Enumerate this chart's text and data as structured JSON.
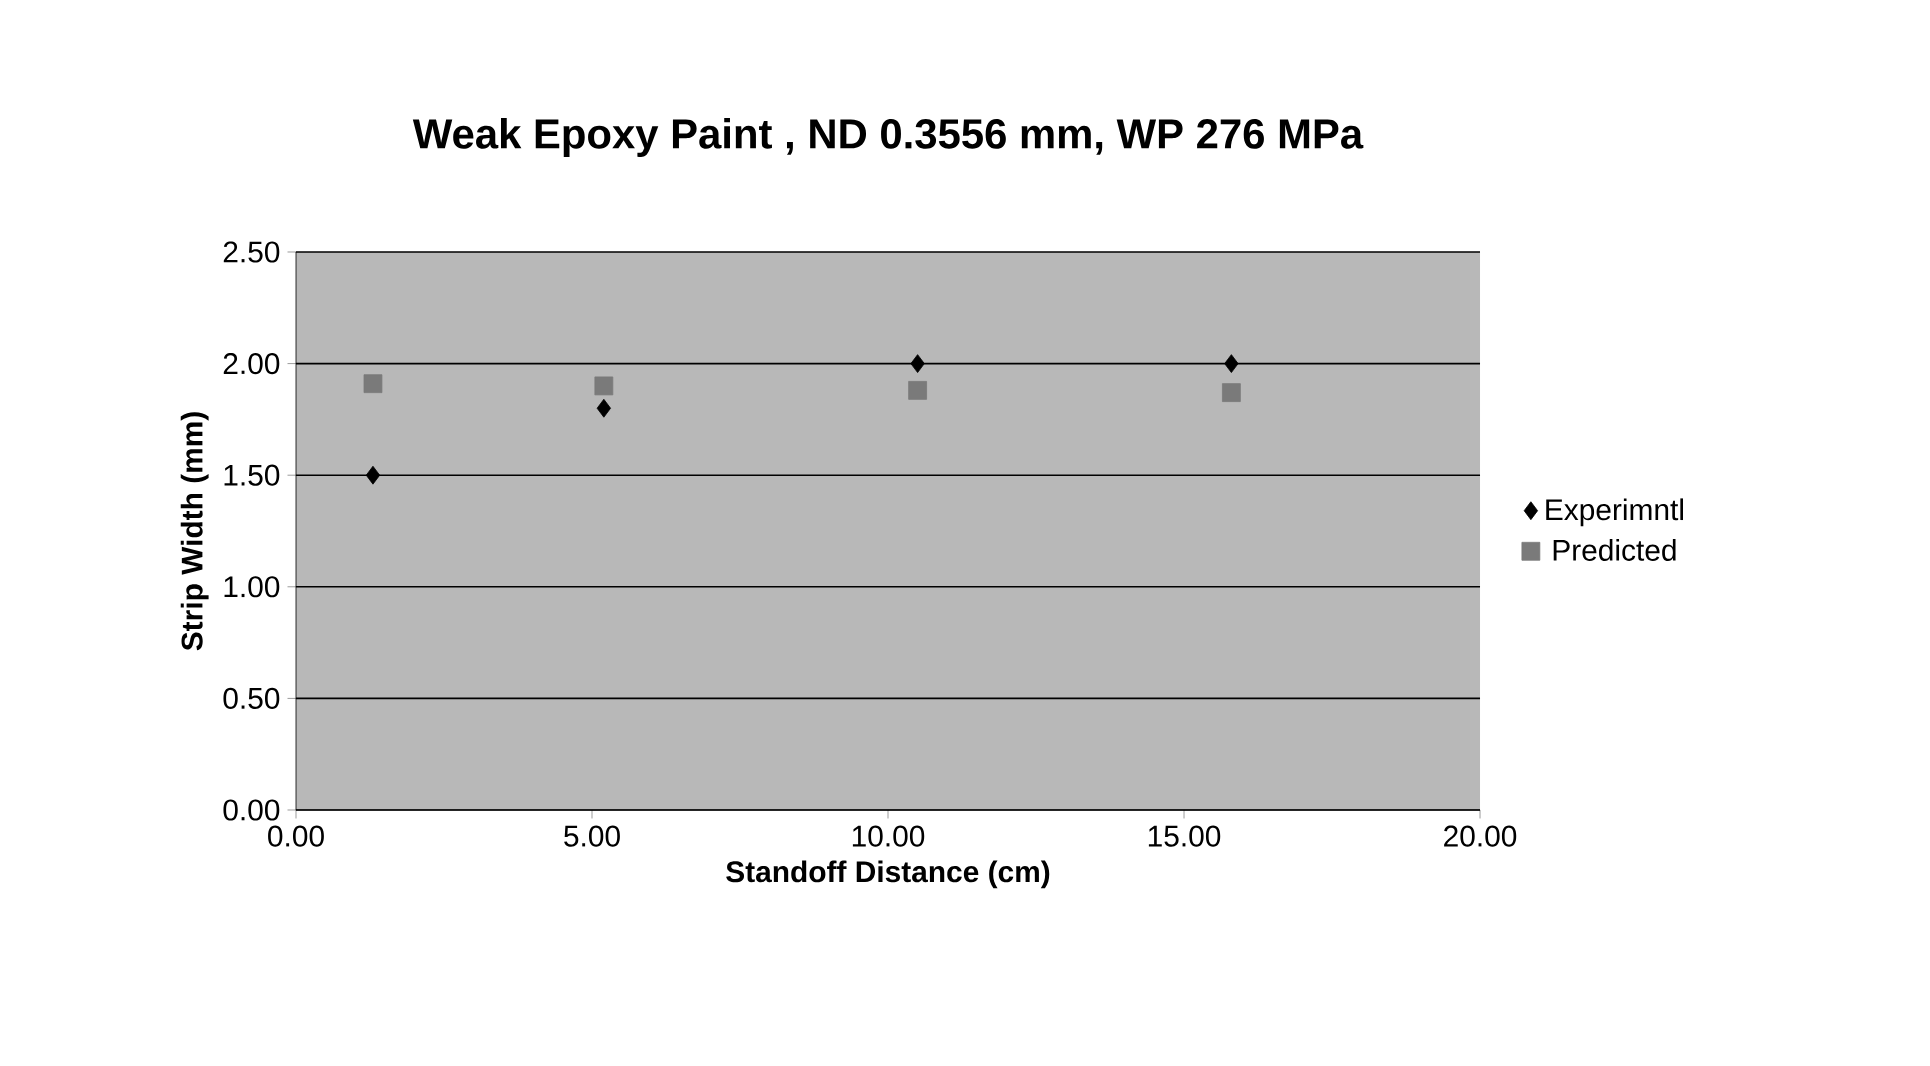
{
  "chart_data": {
    "type": "scatter",
    "title": "Weak Epoxy Paint , ND 0.3556 mm, WP 276 MPa",
    "xlabel": "Standoff Distance (cm)",
    "ylabel": "Strip Width (mm)",
    "series": [
      {
        "name": "Experimntl",
        "color": "#000000",
        "marker": "diamond",
        "x": [
          1.3,
          5.2,
          10.5,
          15.8
        ],
        "values": [
          1.5,
          1.8,
          2.0,
          2.0
        ]
      },
      {
        "name": "Predicted",
        "color": "#7a7a7a",
        "marker": "square",
        "x": [
          1.3,
          5.2,
          10.5,
          15.8
        ],
        "values": [
          1.91,
          1.9,
          1.88,
          1.87
        ]
      }
    ],
    "xlim": [
      0,
      20
    ],
    "ylim": [
      0,
      2.5
    ],
    "xticks": [
      {
        "value": 0,
        "label": "0.00"
      },
      {
        "value": 5,
        "label": "5.00"
      },
      {
        "value": 10,
        "label": "10.00"
      },
      {
        "value": 15,
        "label": "15.00"
      },
      {
        "value": 20,
        "label": "20.00"
      }
    ],
    "yticks": [
      {
        "value": 0,
        "label": "0.00"
      },
      {
        "value": 0.5,
        "label": "0.50"
      },
      {
        "value": 1,
        "label": "1.00"
      },
      {
        "value": 1.5,
        "label": "1.50"
      },
      {
        "value": 2,
        "label": "2.00"
      },
      {
        "value": 2.5,
        "label": "2.50"
      }
    ],
    "grid": "y",
    "legend": "right"
  }
}
